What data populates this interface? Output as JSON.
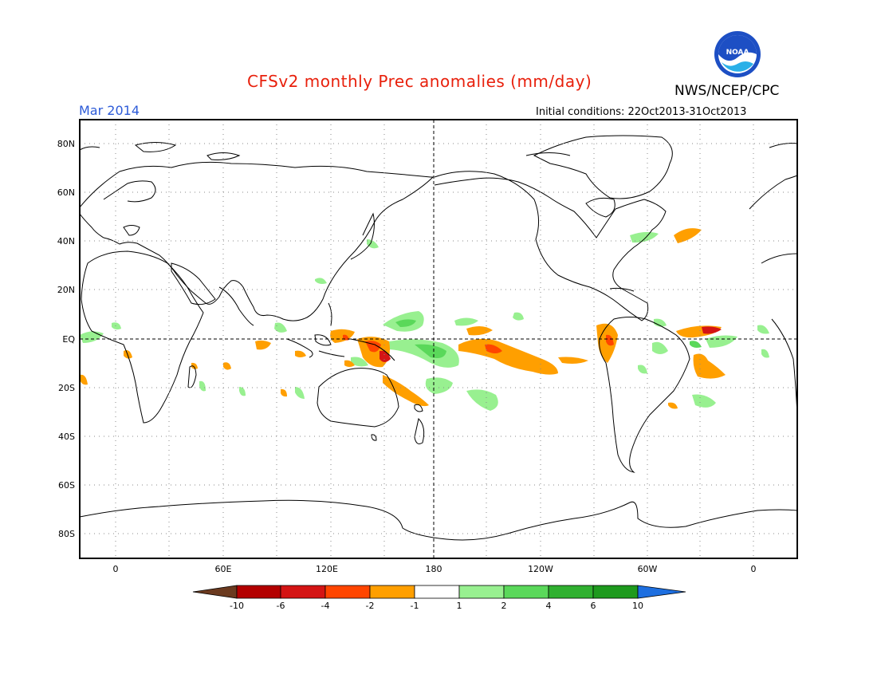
{
  "title": "CFSv2 monthly Prec anomalies (mm/day)",
  "organization": "NWS/NCEP/CPC",
  "logo_text": "NOAA",
  "valid_month": "Mar 2014",
  "initial_conditions": "Initial conditions: 22Oct2013-31Oct2013",
  "map": {
    "projection": "cylindrical equidistant, centered on 180",
    "lon_range": [
      -20,
      380
    ],
    "lat_range": [
      -90,
      90
    ],
    "lat_labels": [
      "80N",
      "60N",
      "40N",
      "20N",
      "EQ",
      "20S",
      "40S",
      "60S",
      "80S"
    ],
    "lon_labels": [
      "0",
      "60E",
      "120E",
      "180",
      "120W",
      "60W",
      "0"
    ],
    "grid": "dotted"
  },
  "colorbar": {
    "labels": [
      "-10",
      "-6",
      "-4",
      "-2",
      "-1",
      "1",
      "2",
      "4",
      "6",
      "10"
    ],
    "colors": [
      "#6b3a1f",
      "#b30000",
      "#d41414",
      "#ff4500",
      "#ff9f00",
      "#ffffff",
      "#98f090",
      "#5ad85a",
      "#30b030",
      "#1e9a1e",
      "#1e6fe0"
    ]
  },
  "anomaly_colors": {
    "orange": "#ff9f00",
    "red_orange": "#ff4500",
    "red": "#d41414",
    "light_green": "#98f090",
    "green": "#5ad85a"
  }
}
